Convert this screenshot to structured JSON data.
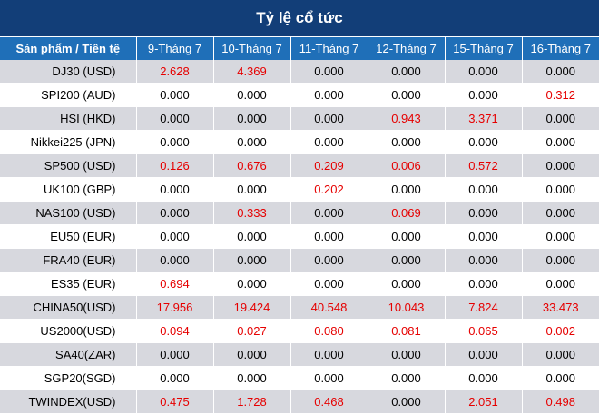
{
  "title": "Tỷ lệ cổ tức",
  "columns": [
    "Sản phẩm / Tiền tệ",
    "9-Tháng 7",
    "10-Tháng 7",
    "11-Tháng 7",
    "12-Tháng 7",
    "15-Tháng 7",
    "16-Tháng 7"
  ],
  "rows": [
    {
      "product": "DJ30 (USD)",
      "values": [
        "2.628",
        "4.369",
        "0.000",
        "0.000",
        "0.000",
        "0.000"
      ]
    },
    {
      "product": "SPI200 (AUD)",
      "values": [
        "0.000",
        "0.000",
        "0.000",
        "0.000",
        "0.000",
        "0.312"
      ]
    },
    {
      "product": "HSI (HKD)",
      "values": [
        "0.000",
        "0.000",
        "0.000",
        "0.943",
        "3.371",
        "0.000"
      ]
    },
    {
      "product": "Nikkei225 (JPN)",
      "values": [
        "0.000",
        "0.000",
        "0.000",
        "0.000",
        "0.000",
        "0.000"
      ]
    },
    {
      "product": "SP500 (USD)",
      "values": [
        "0.126",
        "0.676",
        "0.209",
        "0.006",
        "0.572",
        "0.000"
      ]
    },
    {
      "product": "UK100 (GBP)",
      "values": [
        "0.000",
        "0.000",
        "0.202",
        "0.000",
        "0.000",
        "0.000"
      ]
    },
    {
      "product": "NAS100 (USD)",
      "values": [
        "0.000",
        "0.333",
        "0.000",
        "0.069",
        "0.000",
        "0.000"
      ]
    },
    {
      "product": "EU50 (EUR)",
      "values": [
        "0.000",
        "0.000",
        "0.000",
        "0.000",
        "0.000",
        "0.000"
      ]
    },
    {
      "product": "FRA40 (EUR)",
      "values": [
        "0.000",
        "0.000",
        "0.000",
        "0.000",
        "0.000",
        "0.000"
      ]
    },
    {
      "product": "ES35 (EUR)",
      "values": [
        "0.694",
        "0.000",
        "0.000",
        "0.000",
        "0.000",
        "0.000"
      ]
    },
    {
      "product": "CHINA50(USD)",
      "values": [
        "17.956",
        "19.424",
        "40.548",
        "10.043",
        "7.824",
        "33.473"
      ]
    },
    {
      "product": "US2000(USD)",
      "values": [
        "0.094",
        "0.027",
        "0.080",
        "0.081",
        "0.065",
        "0.002"
      ]
    },
    {
      "product": "SA40(ZAR)",
      "values": [
        "0.000",
        "0.000",
        "0.000",
        "0.000",
        "0.000",
        "0.000"
      ]
    },
    {
      "product": "SGP20(SGD)",
      "values": [
        "0.000",
        "0.000",
        "0.000",
        "0.000",
        "0.000",
        "0.000"
      ]
    },
    {
      "product": "TWINDEX(USD)",
      "values": [
        "0.475",
        "1.728",
        "0.468",
        "0.000",
        "2.051",
        "0.498"
      ]
    }
  ],
  "colors": {
    "title_bg": "#123e78",
    "header_bg": "#1f6fb8",
    "stripe_bg": "#d7d8de",
    "nonzero_text": "#e60000"
  }
}
